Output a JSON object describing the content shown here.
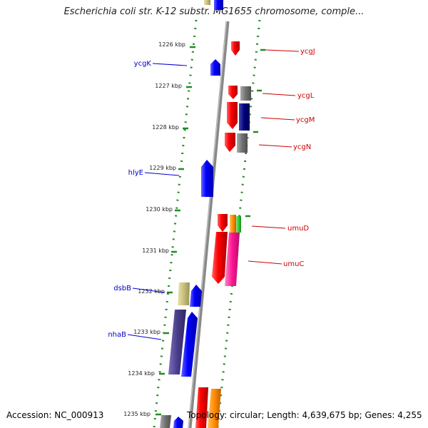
{
  "title": "Escherichia coli str. K-12 substr. MG1655 chromosome, comple...",
  "footer": {
    "accession": "Accession: NC_000913",
    "summary": "Topology: circular; Length: 4,639,675 bp; Genes: 4,255"
  },
  "colors": {
    "axis": "#8a8a8a",
    "dots": "#228b22",
    "left_label": "#0000cc",
    "right_label": "#cc0000"
  },
  "ticks": [
    {
      "label": "1226 kbp"
    },
    {
      "label": "1227 kbp"
    },
    {
      "label": "1228 kbp"
    },
    {
      "label": "1229 kbp"
    },
    {
      "label": "1230 kbp"
    },
    {
      "label": "1231 kbp"
    },
    {
      "label": "1232 kbp"
    },
    {
      "label": "1233 kbp"
    },
    {
      "label": "1234 kbp"
    },
    {
      "label": "1235 kbp"
    }
  ],
  "genes_left": [
    {
      "name": "ycgK"
    },
    {
      "name": "hlyE"
    },
    {
      "name": "dsbB"
    },
    {
      "name": "nhaB"
    }
  ],
  "genes_right": [
    {
      "name": "ycgJ"
    },
    {
      "name": "ycgL"
    },
    {
      "name": "ycgM"
    },
    {
      "name": "ycgN"
    },
    {
      "name": "umuD"
    },
    {
      "name": "umuC"
    }
  ]
}
